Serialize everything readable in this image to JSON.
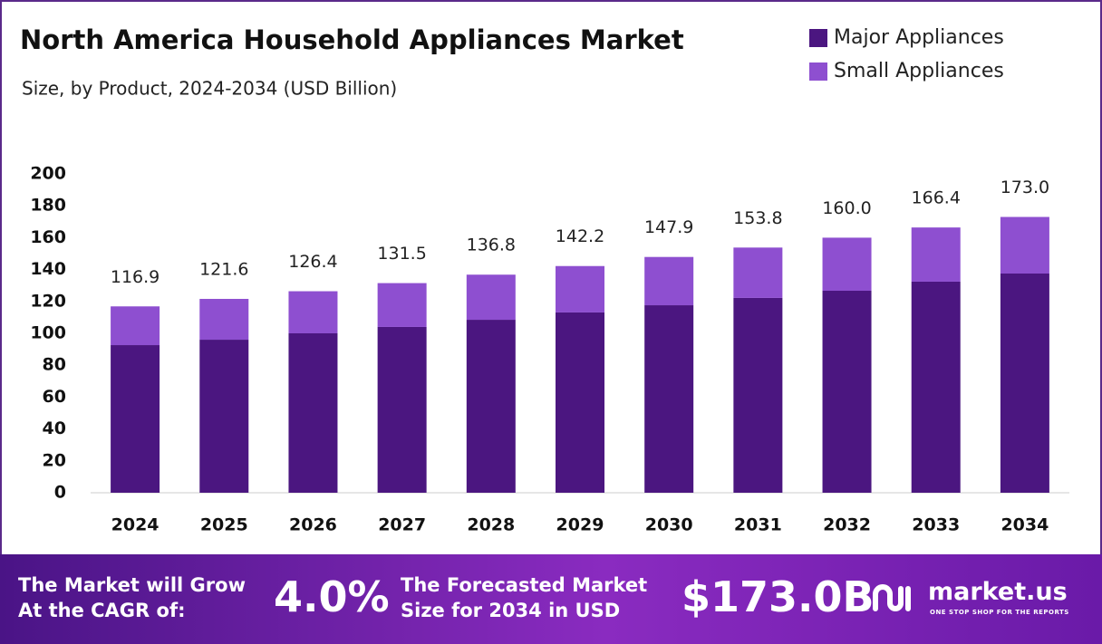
{
  "chart_data": {
    "type": "stacked_bar",
    "title": "North America Household Appliances Market",
    "subtitle": "Size, by Product, 2024-2034 (USD Billion)",
    "categories": [
      "2024",
      "2025",
      "2026",
      "2027",
      "2028",
      "2029",
      "2030",
      "2031",
      "2032",
      "2033",
      "2034"
    ],
    "series": [
      {
        "name": "Major Appliances",
        "color": "#4b1680",
        "values": [
          92.6,
          96.0,
          100.0,
          104.0,
          108.5,
          113.1,
          117.6,
          122.2,
          126.7,
          132.4,
          137.5
        ]
      },
      {
        "name": "Small Appliances",
        "color": "#8e4fd0",
        "values": [
          24.3,
          25.6,
          26.4,
          27.5,
          28.3,
          29.1,
          30.3,
          31.6,
          33.3,
          34.0,
          35.5
        ]
      }
    ],
    "totals": [
      116.9,
      121.6,
      126.4,
      131.5,
      136.8,
      142.2,
      147.9,
      153.8,
      160.0,
      166.4,
      173.0
    ],
    "value_labels": [
      "116.9",
      "121.6",
      "126.4",
      "131.5",
      "136.8",
      "142.2",
      "147.9",
      "153.8",
      "160.0",
      "166.4",
      "173.0"
    ],
    "ylim": [
      0,
      200
    ],
    "yticks": [
      0,
      20,
      40,
      60,
      80,
      100,
      120,
      140,
      160,
      180,
      200
    ],
    "grid": false,
    "legend": "top-right"
  },
  "footer": {
    "grow_line1": "The Market will Grow",
    "grow_line2": "At the CAGR of:",
    "cagr": "4.0%",
    "forecast_line1": "The Forecasted Market",
    "forecast_line2": "Size for 2034 in USD",
    "forecast_value": "$173.0B",
    "brand": "market.us",
    "tagline": "ONE STOP SHOP FOR THE REPORTS"
  }
}
